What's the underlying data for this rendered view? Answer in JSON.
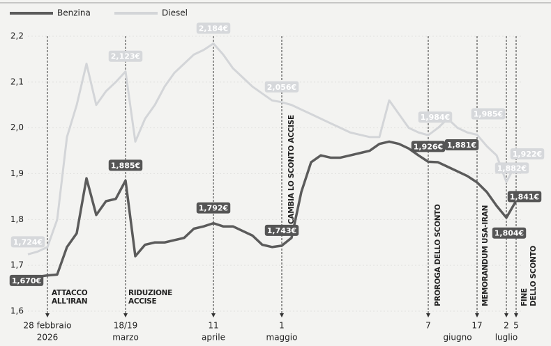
{
  "chart_data": {
    "type": "line",
    "categories": [
      null,
      null,
      "28 febbraio",
      null,
      null,
      null,
      null,
      null,
      null,
      null,
      "18/19",
      null,
      null,
      null,
      null,
      null,
      null,
      null,
      null,
      "11",
      null,
      null,
      null,
      null,
      null,
      null,
      "1",
      null,
      null,
      null,
      null,
      null,
      null,
      null,
      null,
      null,
      null,
      null,
      null,
      null,
      null,
      "7",
      null,
      null,
      null,
      null,
      "17",
      null,
      null,
      "2",
      "5"
    ],
    "x_sublabels": [
      null,
      null,
      "2026",
      null,
      null,
      null,
      null,
      null,
      null,
      null,
      "marzo",
      null,
      null,
      null,
      null,
      null,
      null,
      null,
      null,
      "aprile",
      null,
      null,
      null,
      null,
      null,
      null,
      "maggio",
      null,
      null,
      null,
      null,
      null,
      null,
      null,
      null,
      null,
      null,
      null,
      null,
      null,
      null,
      null,
      null,
      null,
      "giugno",
      null,
      null,
      null,
      null,
      "luglio",
      null
    ],
    "series": [
      {
        "name": "Benzina",
        "color": "#5b5b5b",
        "values": [
          1.67,
          1.675,
          1.678,
          1.68,
          1.74,
          1.77,
          1.89,
          1.81,
          1.84,
          1.845,
          1.885,
          1.72,
          1.745,
          1.75,
          1.75,
          1.755,
          1.76,
          1.78,
          1.785,
          1.792,
          1.785,
          1.785,
          1.775,
          1.765,
          1.745,
          1.74,
          1.743,
          1.76,
          1.86,
          1.925,
          1.94,
          1.935,
          1.935,
          1.94,
          1.945,
          1.95,
          1.965,
          1.97,
          1.965,
          1.955,
          1.94,
          1.926,
          1.925,
          1.915,
          1.905,
          1.895,
          1.881,
          1.86,
          1.83,
          1.804,
          1.841
        ],
        "value_labels": [
          "1,670€",
          null,
          null,
          null,
          null,
          null,
          null,
          null,
          null,
          null,
          "1,885€",
          null,
          null,
          null,
          null,
          null,
          null,
          null,
          null,
          "1,792€",
          null,
          null,
          null,
          null,
          null,
          null,
          "1,743€",
          null,
          null,
          null,
          null,
          null,
          null,
          null,
          null,
          null,
          null,
          null,
          null,
          null,
          null,
          "1,926€",
          null,
          null,
          null,
          null,
          "1,881€",
          null,
          null,
          "1,804€",
          "1,841€"
        ]
      },
      {
        "name": "Diesel",
        "color": "#d3d5d8",
        "values": [
          1.724,
          1.73,
          1.74,
          1.8,
          1.98,
          2.05,
          2.14,
          2.05,
          2.08,
          2.1,
          2.123,
          1.97,
          2.02,
          2.05,
          2.09,
          2.12,
          2.14,
          2.16,
          2.17,
          2.184,
          2.16,
          2.13,
          2.11,
          2.09,
          2.075,
          2.06,
          2.056,
          2.05,
          2.04,
          2.03,
          2.02,
          2.01,
          2.0,
          1.99,
          1.985,
          1.98,
          1.98,
          2.06,
          2.03,
          2.0,
          1.99,
          1.984,
          2.0,
          2.02,
          2.0,
          1.99,
          1.985,
          1.96,
          1.94,
          1.882,
          1.922
        ],
        "value_labels": [
          "1,724€",
          null,
          null,
          null,
          null,
          null,
          null,
          null,
          null,
          null,
          "2,123€",
          null,
          null,
          null,
          null,
          null,
          null,
          null,
          null,
          "2,184€",
          null,
          null,
          null,
          null,
          null,
          null,
          "2,056€",
          null,
          null,
          null,
          null,
          null,
          null,
          null,
          null,
          null,
          null,
          null,
          null,
          null,
          null,
          "1,984€",
          null,
          null,
          null,
          null,
          "1,985€",
          null,
          null,
          "1,882€",
          "1,922€"
        ]
      }
    ],
    "annotations": [
      {
        "text": [
          "ATTACCO",
          "ALL'IRAN"
        ],
        "event": "28 febbraio"
      },
      {
        "text": [
          "RIDUZIONE",
          "ACCISE"
        ],
        "event": "18/19"
      },
      {
        "text": [
          "CAMBIA LO SCONTO ACCISE"
        ],
        "event": "1"
      },
      {
        "text": [
          "PROROGA DELLO SCONTO"
        ],
        "event": "7"
      },
      {
        "text": [
          "MEMORANDUM USA-IRAN"
        ],
        "event": "17"
      },
      {
        "text": [
          "FINE",
          "DELLO SCONTO"
        ],
        "event": "5"
      }
    ],
    "ylim": [
      1.6,
      2.2
    ],
    "yticks": [
      {
        "value": 1.6,
        "label": "1,6"
      },
      {
        "value": 1.7,
        "label": "1,7"
      },
      {
        "value": 1.8,
        "label": "1,8"
      },
      {
        "value": 1.9,
        "label": "1,9"
      },
      {
        "value": 2.0,
        "label": "2,0"
      },
      {
        "value": 2.1,
        "label": "2,1"
      },
      {
        "value": 2.2,
        "label": "2,2"
      }
    ],
    "grid": true
  }
}
